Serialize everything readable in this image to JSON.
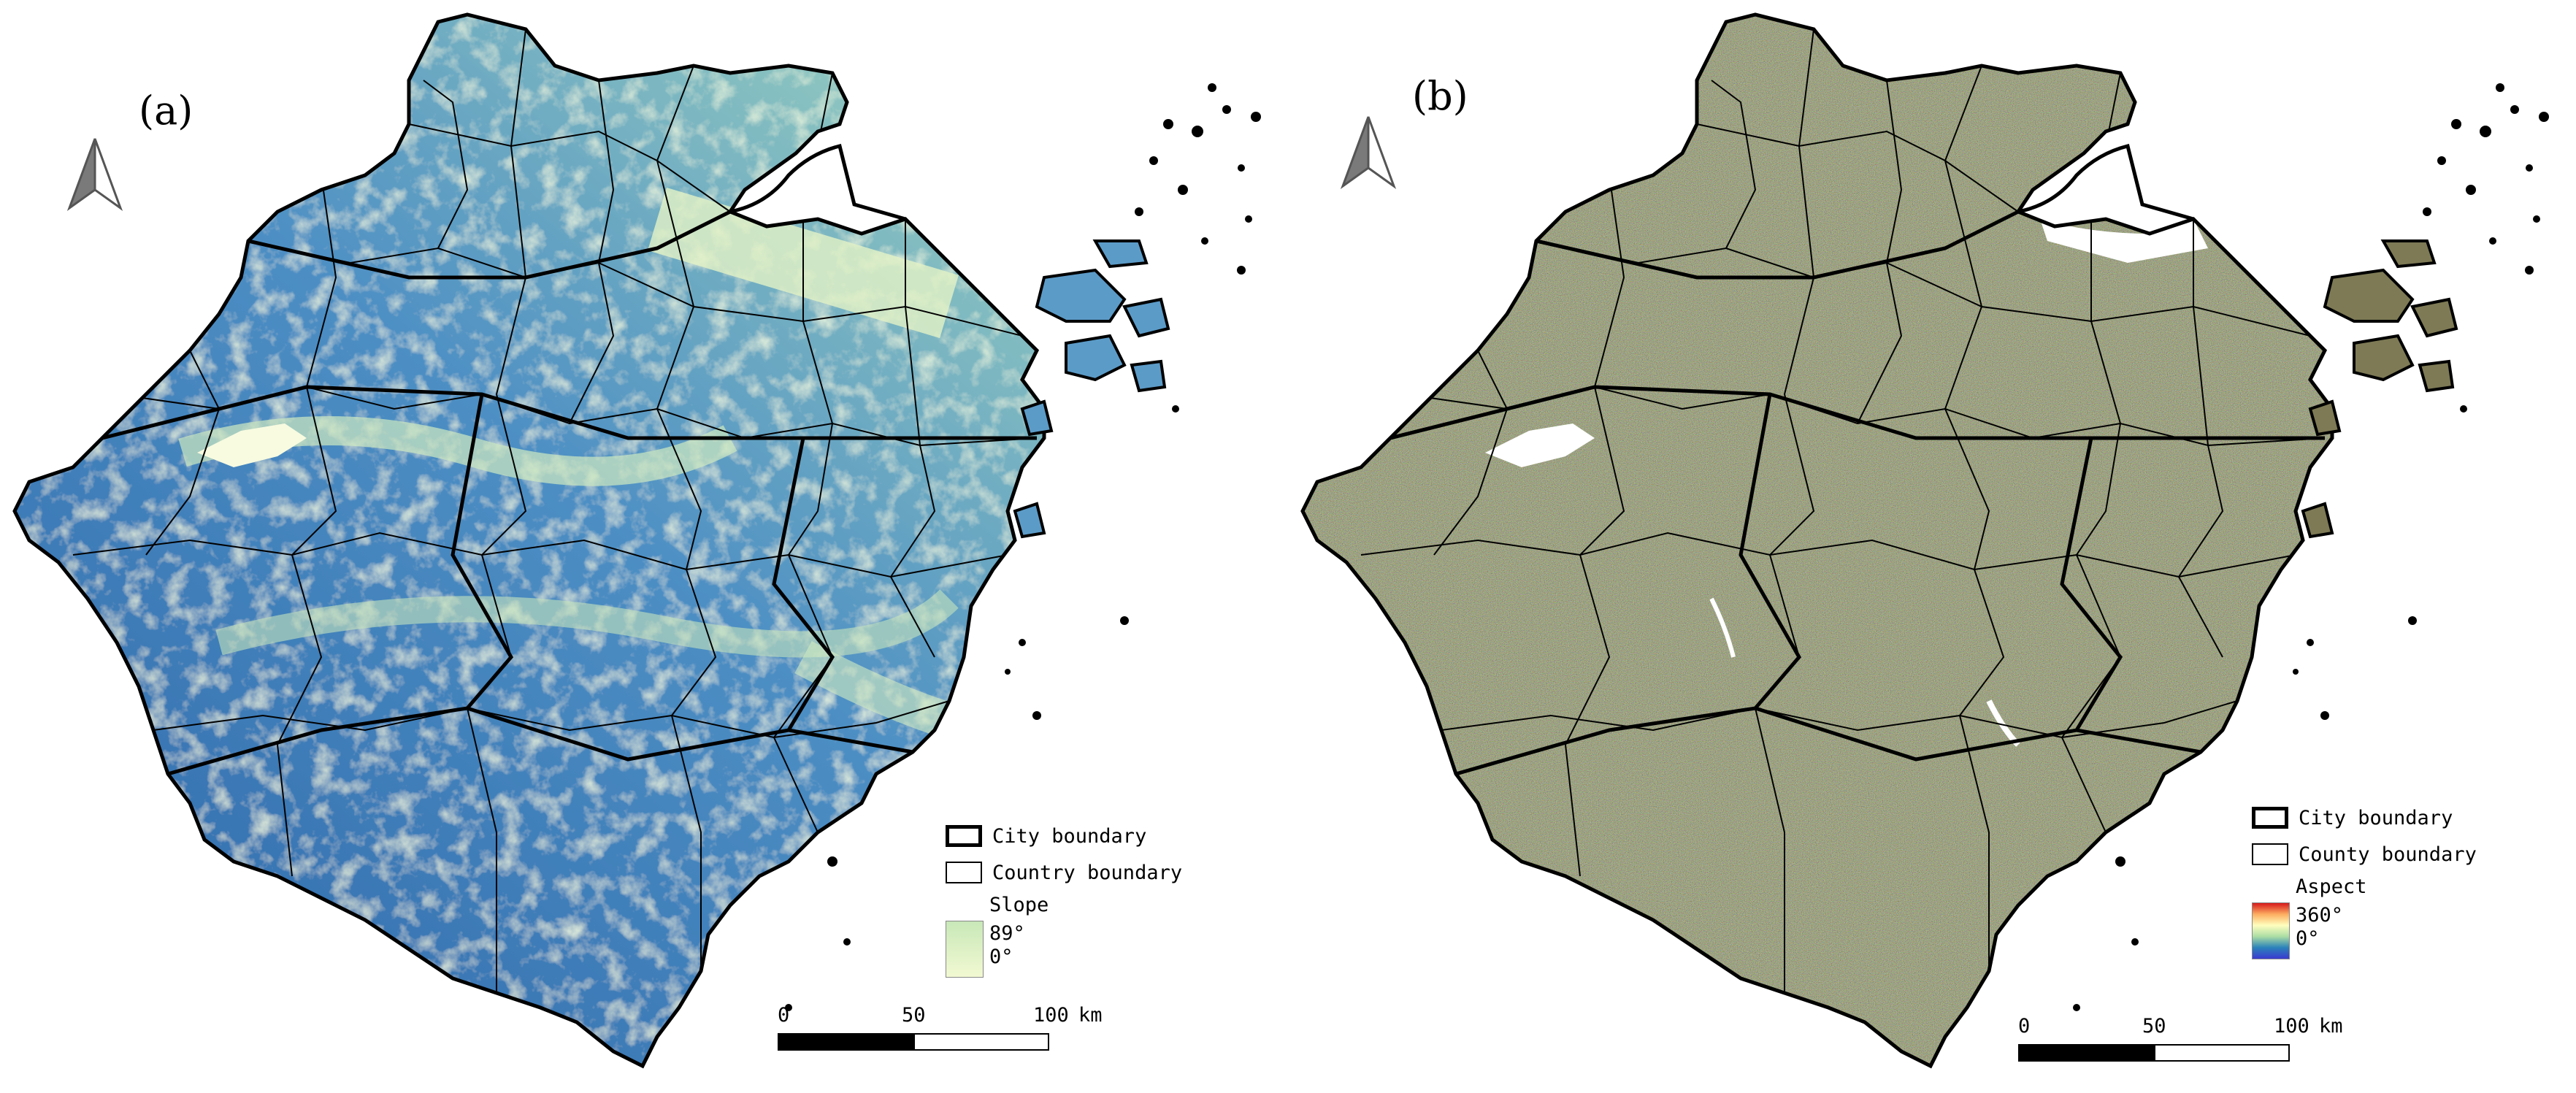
{
  "panels": [
    {
      "id": "a",
      "label": "(a)",
      "theme": "slope",
      "legend": {
        "city_label": "City boundary",
        "county_label": "Country boundary",
        "ramp_title": "Slope",
        "ramp_max": "89°",
        "ramp_min": "0°",
        "ramp_colors": [
          "#2166ac",
          "#4f9bc7",
          "#a6d6b8",
          "#f5fbc8"
        ]
      },
      "scale": {
        "ticks": [
          "0",
          "50",
          "100"
        ],
        "unit": "km"
      },
      "fill_colors": {
        "dark": "#2a64a8",
        "mid": "#5b9bc8",
        "light": "#d8efc2"
      }
    },
    {
      "id": "b",
      "label": "(b)",
      "theme": "aspect",
      "legend": {
        "city_label": "City boundary",
        "county_label": "County boundary",
        "ramp_title": "Aspect",
        "ramp_max": "360°",
        "ramp_min": "0°",
        "ramp_colors": [
          "#d7191c",
          "#fdae61",
          "#ffffbf",
          "#abdda4",
          "#2b83ba",
          "#3a3ad0"
        ]
      },
      "scale": {
        "ticks": [
          "0",
          "50",
          "100"
        ],
        "unit": "km"
      },
      "fill_colors": {
        "base": "#7a7a52",
        "speck1": "#9a8a5a",
        "speck2": "#5f7a5a"
      }
    }
  ],
  "north_arrow_icon": "north-arrow-icon"
}
